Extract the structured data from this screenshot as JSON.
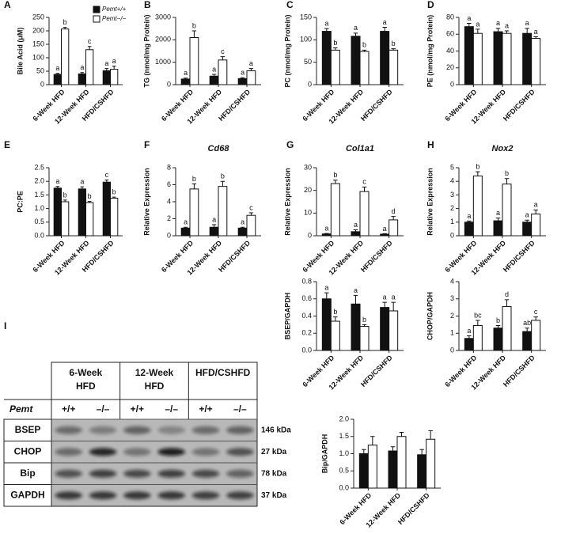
{
  "chart_data": [
    {
      "type": "bar",
      "label": "A",
      "ylabel": "Bile Acid (μM)",
      "categories": [
        "6-Week HFD",
        "12-Week HFD",
        "HFD/CSHFD"
      ],
      "ylim": [
        0,
        250
      ],
      "yticks": [
        0,
        50,
        100,
        150,
        200,
        250
      ],
      "legend": "upper right",
      "series": [
        {
          "name": "Pemt+/+",
          "color": "#111111",
          "values": [
            38,
            40,
            52
          ],
          "error": [
            4,
            5,
            8
          ],
          "annotations": [
            "a",
            "a",
            "a"
          ]
        },
        {
          "name": "Pemt−/−",
          "color": "#ffffff",
          "values": [
            207,
            130,
            57
          ],
          "error": [
            6,
            12,
            12
          ],
          "annotations": [
            "b",
            "c",
            "a"
          ]
        }
      ]
    },
    {
      "type": "bar",
      "label": "B",
      "ylabel": "TG (nmol/mg Protein)",
      "categories": [
        "6-Week HFD",
        "12-Week HFD",
        "HFD/CSHFD"
      ],
      "ylim": [
        0,
        3000
      ],
      "yticks": [
        0,
        1000,
        2000,
        3000
      ],
      "series": [
        {
          "color": "#111111",
          "values": [
            250,
            380,
            270
          ],
          "error": [
            40,
            80,
            40
          ],
          "annotations": [
            "a",
            "a",
            "a"
          ]
        },
        {
          "color": "#ffffff",
          "values": [
            2100,
            1100,
            620
          ],
          "error": [
            300,
            150,
            100
          ],
          "annotations": [
            "b",
            "c",
            "a"
          ]
        }
      ]
    },
    {
      "type": "bar",
      "label": "C",
      "ylabel": "PC (nmol/mg Protein)",
      "categories": [
        "6-Week HFD",
        "12-Week HFD",
        "HFD/CSHFD"
      ],
      "ylim": [
        0,
        150
      ],
      "yticks": [
        0,
        50,
        100,
        150
      ],
      "series": [
        {
          "color": "#111111",
          "values": [
            119,
            108,
            119
          ],
          "error": [
            6,
            7,
            9
          ],
          "annotations": [
            "a",
            "a",
            "a"
          ]
        },
        {
          "color": "#ffffff",
          "values": [
            77,
            74,
            77
          ],
          "error": [
            5,
            3,
            3
          ],
          "annotations": [
            "b",
            "b",
            "b"
          ]
        }
      ]
    },
    {
      "type": "bar",
      "label": "D",
      "ylabel": "PE (nmol/mg Protein)",
      "categories": [
        "6-Week HFD",
        "12-Week HFD",
        "HFD/CSHFD"
      ],
      "ylim": [
        0,
        80
      ],
      "yticks": [
        0,
        20,
        40,
        60,
        80
      ],
      "series": [
        {
          "color": "#111111",
          "values": [
            69,
            63,
            61
          ],
          "error": [
            4,
            4,
            6
          ],
          "annotations": [
            "a",
            "a",
            "a"
          ]
        },
        {
          "color": "#ffffff",
          "values": [
            61,
            61,
            55
          ],
          "error": [
            5,
            3,
            2
          ],
          "annotations": [
            "a",
            "a",
            "a"
          ]
        }
      ]
    },
    {
      "type": "bar",
      "label": "E",
      "ylabel": "PC:PE",
      "categories": [
        "6-Week HFD",
        "12-Week HFD",
        "HFD/CSHFD"
      ],
      "ylim": [
        0,
        2.5
      ],
      "yticks": [
        {
          "value": 0,
          "label": "0.0"
        },
        0.5,
        {
          "value": 1,
          "label": "1.0"
        },
        1.5,
        {
          "value": 2,
          "label": "2.0"
        },
        2.5
      ],
      "series": [
        {
          "color": "#111111",
          "values": [
            1.75,
            1.72,
            1.97
          ],
          "error": [
            0.06,
            0.08,
            0.08
          ],
          "annotations": [
            "a",
            "a",
            "c"
          ]
        },
        {
          "color": "#ffffff",
          "values": [
            1.25,
            1.22,
            1.38
          ],
          "error": [
            0.06,
            0.04,
            0.04
          ],
          "annotations": [
            "b",
            "b",
            "b"
          ]
        }
      ]
    },
    {
      "type": "bar",
      "label": "F",
      "title": "Cd68",
      "ylabel": "Relative Expression",
      "categories": [
        "6-Week HFD",
        "12-Week HFD",
        "HFD/CSHFD"
      ],
      "ylim": [
        0,
        8
      ],
      "yticks": [
        0,
        2,
        4,
        6,
        8
      ],
      "series": [
        {
          "color": "#111111",
          "values": [
            0.9,
            1.0,
            0.9
          ],
          "error": [
            0.1,
            0.3,
            0.1
          ],
          "annotations": [
            "a",
            "a",
            "a"
          ]
        },
        {
          "color": "#ffffff",
          "values": [
            5.5,
            5.8,
            2.4
          ],
          "error": [
            0.6,
            0.6,
            0.3
          ],
          "annotations": [
            "b",
            "b",
            "c"
          ]
        }
      ]
    },
    {
      "type": "bar",
      "label": "G",
      "title": "Col1a1",
      "ylabel": "Relative Expression",
      "categories": [
        "6-Week HFD",
        "12-Week HFD",
        "HFD/CSHFD"
      ],
      "ylim": [
        0,
        30
      ],
      "yticks": [
        0,
        10,
        20,
        30
      ],
      "series": [
        {
          "color": "#111111",
          "values": [
            0.8,
            1.8,
            0.7
          ],
          "error": [
            0.2,
            0.8,
            0.2
          ],
          "annotations": [
            "a",
            "a",
            "a"
          ]
        },
        {
          "color": "#ffffff",
          "values": [
            23,
            19.5,
            7
          ],
          "error": [
            1.5,
            2,
            1.5
          ],
          "annotations": [
            "b",
            "c",
            "d"
          ]
        }
      ]
    },
    {
      "type": "bar",
      "label": "H",
      "title": "Nox2",
      "ylabel": "Relative Expression",
      "categories": [
        "6-Week HFD",
        "12-Week HFD",
        "HFD/CSHFD"
      ],
      "ylim": [
        0,
        5
      ],
      "yticks": [
        0,
        1,
        2,
        3,
        4,
        5
      ],
      "series": [
        {
          "color": "#111111",
          "values": [
            1.0,
            1.1,
            1.0
          ],
          "error": [
            0.08,
            0.2,
            0.15
          ],
          "annotations": [
            "a",
            "a",
            "a"
          ]
        },
        {
          "color": "#ffffff",
          "values": [
            4.4,
            3.8,
            1.6
          ],
          "error": [
            0.3,
            0.4,
            0.3
          ],
          "annotations": [
            "b",
            "b",
            "a"
          ]
        }
      ]
    },
    {
      "type": "bar",
      "ylabel": "BSEP/GAPDH",
      "categories": [
        "6-Week HFD",
        "12-Week HFD",
        "HFD/CSHFD"
      ],
      "ylim": [
        0,
        0.8
      ],
      "yticks": [
        {
          "value": 0,
          "label": "0.0"
        },
        0.2,
        0.4,
        0.6,
        0.8
      ],
      "series": [
        {
          "color": "#111111",
          "values": [
            0.6,
            0.54,
            0.5
          ],
          "error": [
            0.07,
            0.1,
            0.06
          ],
          "annotations": [
            "a",
            "a",
            "a"
          ]
        },
        {
          "color": "#ffffff",
          "values": [
            0.34,
            0.28,
            0.46
          ],
          "error": [
            0.05,
            0.02,
            0.1
          ],
          "annotations": [
            "b",
            "b",
            "a"
          ]
        }
      ]
    },
    {
      "type": "bar",
      "ylabel": "CHOP/GAPDH",
      "categories": [
        "6-Week HFD",
        "12-Week HFD",
        "HFD/CSHFD"
      ],
      "ylim": [
        0,
        4
      ],
      "yticks": [
        0,
        1,
        2,
        3,
        4
      ],
      "series": [
        {
          "color": "#111111",
          "values": [
            0.7,
            1.3,
            1.1
          ],
          "error": [
            0.15,
            0.15,
            0.2
          ],
          "annotations": [
            "a",
            "b",
            "ab"
          ]
        },
        {
          "color": "#ffffff",
          "values": [
            1.45,
            2.55,
            1.75
          ],
          "error": [
            0.3,
            0.4,
            0.2
          ],
          "annotations": [
            "bc",
            "d",
            "c"
          ]
        }
      ]
    },
    {
      "type": "bar",
      "ylabel": "Bip/GAPDH",
      "categories": [
        "6-Week HFD",
        "12-Week HFD",
        "HFD/CSHFD"
      ],
      "ylim": [
        0,
        2
      ],
      "yticks": [
        {
          "value": 0,
          "label": "0.0"
        },
        0.5,
        {
          "value": 1,
          "label": "1.0"
        },
        1.5,
        {
          "value": 2,
          "label": "2.0"
        }
      ],
      "series": [
        {
          "color": "#111111",
          "values": [
            1.0,
            1.08,
            0.97
          ],
          "error": [
            0.12,
            0.12,
            0.15
          ]
        },
        {
          "color": "#ffffff",
          "values": [
            1.25,
            1.5,
            1.42
          ],
          "error": [
            0.25,
            0.12,
            0.25
          ]
        }
      ]
    }
  ],
  "blot": {
    "label": "I",
    "groups": [
      [
        "6-Week",
        "HFD"
      ],
      [
        "12-Week",
        "HFD"
      ],
      [
        "HFD/CSHFD"
      ]
    ],
    "genotype_label": "Pemt",
    "genotypes": [
      "+/+",
      "–/–",
      "+/+",
      "–/–",
      "+/+",
      "–/–"
    ],
    "proteins": [
      "BSEP",
      "CHOP",
      "Bip",
      "GAPDH"
    ],
    "sizes": [
      "146 kDa",
      "27 kDa",
      "78 kDa",
      "37 kDa"
    ]
  }
}
